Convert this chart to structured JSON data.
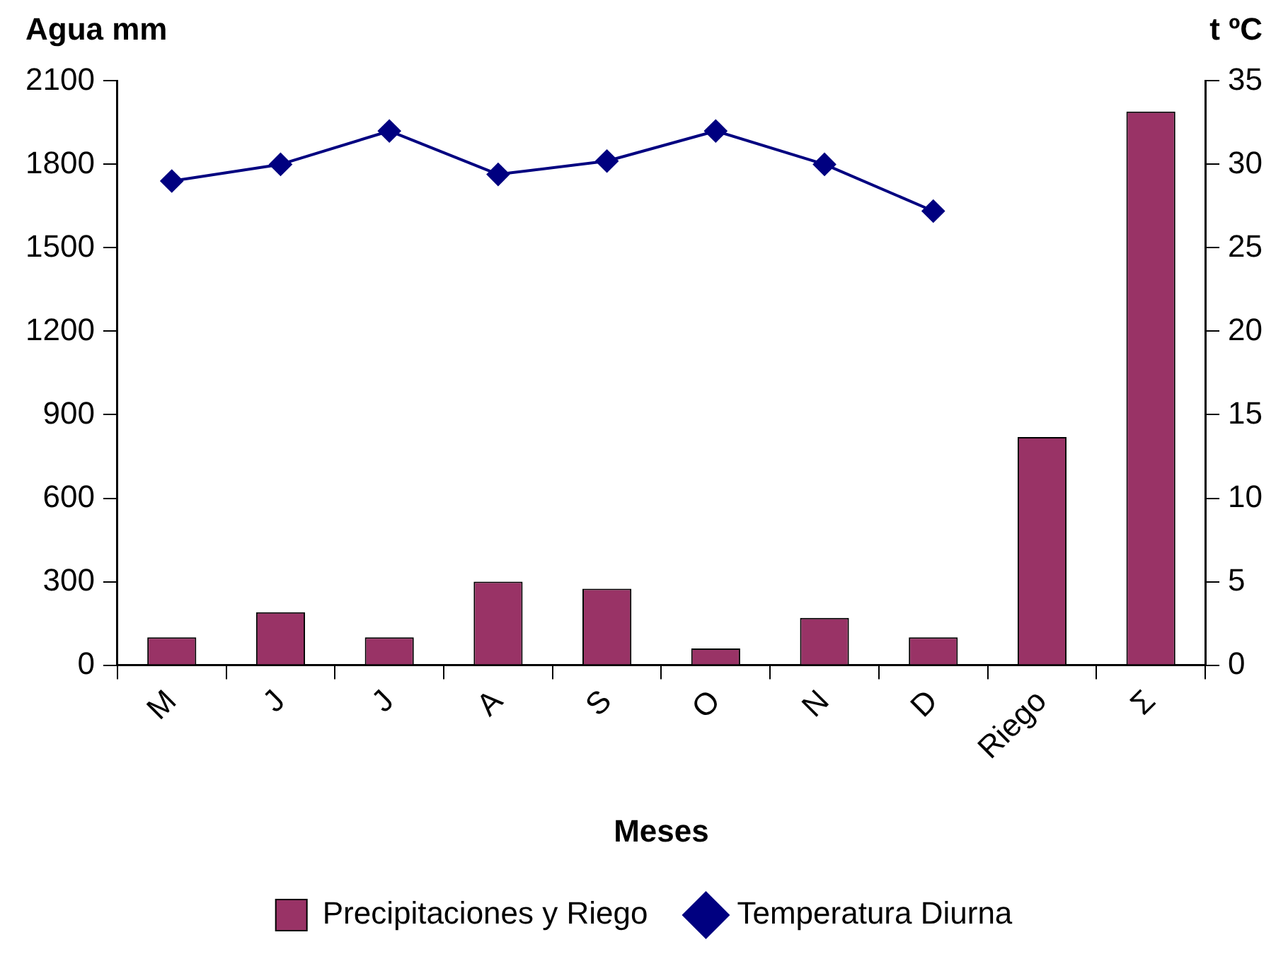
{
  "chart_data": {
    "type": "bar",
    "xlabel": "Meses",
    "ylabel": "Agua mm",
    "y2label": "t ºC",
    "categories": [
      "M",
      "J",
      "J",
      "A",
      "S",
      "O",
      "N",
      "D",
      "Riego",
      "Σ"
    ],
    "series": [
      {
        "name": "Precipitaciones y Riego",
        "color": "#993366",
        "values": [
          100,
          190,
          100,
          300,
          275,
          60,
          170,
          100,
          820,
          1990
        ]
      },
      {
        "name": "Temperatura Diurna",
        "type": "line",
        "axis": "y2",
        "color": "#000080",
        "marker": "diamond",
        "values": [
          29.0,
          30.0,
          32.0,
          29.4,
          30.2,
          32.0,
          30.0,
          27.2,
          null,
          null
        ]
      }
    ],
    "ylim": [
      0,
      2100
    ],
    "yticks": [
      0,
      300,
      600,
      900,
      1200,
      1500,
      1800,
      2100
    ],
    "y2lim": [
      0,
      35
    ],
    "y2ticks": [
      0,
      5,
      10,
      15,
      20,
      25,
      30,
      35
    ],
    "grid": false,
    "legend": "bottom"
  }
}
